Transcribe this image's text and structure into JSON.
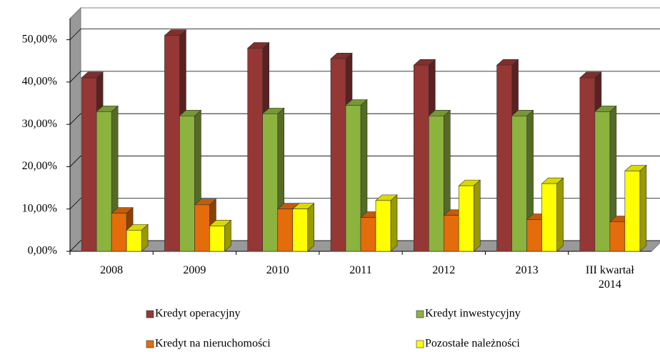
{
  "chart_data": {
    "type": "bar3d",
    "categories": [
      "2008",
      "2009",
      "2010",
      "2011",
      "2012",
      "2013",
      "III kwartał 2014"
    ],
    "series": [
      {
        "name": "Kredyt operacyjny",
        "color": "#953735",
        "values": [
          41,
          51,
          48,
          45.5,
          44,
          44,
          41
        ]
      },
      {
        "name": "Kredyt inwestycyjny",
        "color": "#8cb33e",
        "values": [
          33,
          32,
          32.5,
          34.5,
          32,
          32,
          33
        ]
      },
      {
        "name": "Kredyt na nieruchomości",
        "color": "#e46c0a",
        "values": [
          9,
          11,
          10,
          8,
          8.5,
          7.5,
          7
        ]
      },
      {
        "name": "Pozostałe należności",
        "color": "#ffff00",
        "values": [
          5,
          6,
          10,
          12,
          15.5,
          16,
          19
        ]
      }
    ],
    "ylim": [
      0,
      55
    ],
    "yticks": [
      {
        "value": 0,
        "label": "0,00%"
      },
      {
        "value": 10,
        "label": "10,00%"
      },
      {
        "value": 20,
        "label": "20,00%"
      },
      {
        "value": 30,
        "label": "30,00%"
      },
      {
        "value": 40,
        "label": "40,00%"
      },
      {
        "value": 50,
        "label": "50,00%"
      }
    ],
    "grid": true
  }
}
